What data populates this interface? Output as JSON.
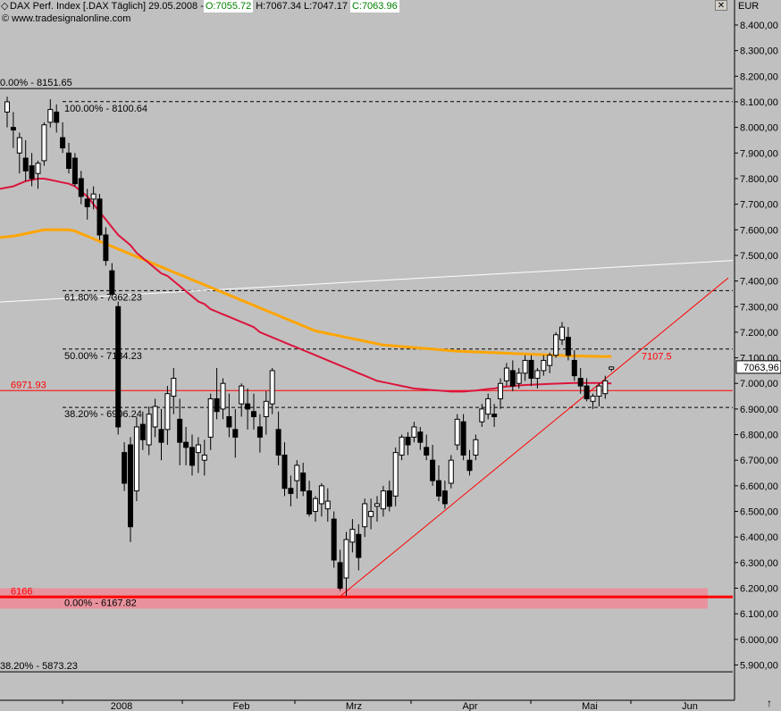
{
  "header": {
    "diamond_icon": "diamond-icon",
    "instrument": "DAX Perf. Index [.DAX  Täglich] 29.05.2008 - ",
    "open": "O:7055.72",
    "high": "H:7067.34",
    "low": "L:7047.17",
    "close": "C:7063.96",
    "source": "© www.tradesignalonline.com",
    "close_icon": "close-icon",
    "close_symbol": "✕"
  },
  "colors": {
    "background": "#c0c0c0",
    "candle_up": "#ffffff",
    "candle_down": "#000000",
    "ma_red": "#dc143c",
    "ma_orange": "#ffa500",
    "support_band": "#ee8a96",
    "annotation_red": "#ff0000",
    "trendline_white": "#ffffff"
  },
  "chart_data": {
    "type": "candlestick",
    "unit": "EUR",
    "ylim": [
      5800,
      8500
    ],
    "y_ticks": [
      "5.900,00",
      "6.000,00",
      "6.100,00",
      "6.200,00",
      "6.300,00",
      "6.400,00",
      "6.500,00",
      "6.600,00",
      "6.700,00",
      "6.800,00",
      "6.900,00",
      "7.000,00",
      "7.100,00",
      "7.200,00",
      "7.300,00",
      "7.400,00",
      "7.500,00",
      "7.600,00",
      "7.700,00",
      "7.800,00",
      "7.900,00",
      "8.000,00",
      "8.100,00",
      "8.200,00",
      "8.300,00",
      "8.400,00"
    ],
    "y_tick_values": [
      5900,
      6000,
      6100,
      6200,
      6300,
      6400,
      6500,
      6600,
      6700,
      6800,
      6900,
      7000,
      7100,
      7200,
      7300,
      7400,
      7500,
      7600,
      7700,
      7800,
      7900,
      8000,
      8100,
      8200,
      8300,
      8400
    ],
    "x_labels": [
      {
        "label": "2008",
        "date": "2008-01-02"
      },
      {
        "label": "Feb",
        "date": "2008-02-01"
      },
      {
        "label": "Mrz",
        "date": "2008-03-03"
      },
      {
        "label": "Apr",
        "date": "2008-04-01"
      },
      {
        "label": "Mai",
        "date": "2008-05-02"
      },
      {
        "label": "Jun",
        "date": "2008-06-02"
      }
    ],
    "last_price_label": "7063,96",
    "last_price": 7063.96,
    "fib_levels": [
      {
        "label": "0.00% - 8151.65",
        "value": 8151.65,
        "style": "solid"
      },
      {
        "label": "100.00% - 8100.64",
        "value": 8100.64,
        "style": "dashed"
      },
      {
        "label": "61.80% - 7362.23",
        "value": 7362.23,
        "style": "dashed"
      },
      {
        "label": "50.00% - 7134.23",
        "value": 7134.23,
        "style": "dashed"
      },
      {
        "label": "38.20% - 6906.24",
        "value": 6906.24,
        "style": "dashed"
      },
      {
        "label": "0.00% - 6167.82",
        "value": 6167.82,
        "style": "dashed"
      },
      {
        "label": "38.20% - 5873.23",
        "value": 5873.23,
        "style": "solid"
      }
    ],
    "horizontal_lines": [
      {
        "label": "6971.93",
        "value": 6971.93
      },
      {
        "label": "6166",
        "value": 6166
      }
    ],
    "annotation": {
      "label": "7107.5",
      "value": 7107.5
    },
    "support_band": [
      6120,
      6200
    ],
    "candles": [
      [
        8060,
        8120,
        8000,
        8100
      ],
      [
        8000,
        8060,
        7920,
        7990
      ],
      [
        7900,
        7980,
        7820,
        7960
      ],
      [
        7880,
        7950,
        7790,
        7830
      ],
      [
        7850,
        7900,
        7770,
        7800
      ],
      [
        7820,
        7870,
        7760,
        7860
      ],
      [
        7870,
        8020,
        7850,
        8010
      ],
      [
        8020,
        8110,
        8000,
        8070
      ],
      [
        8060,
        8090,
        7980,
        8020
      ],
      [
        7960,
        8020,
        7900,
        7920
      ],
      [
        7900,
        7940,
        7820,
        7840
      ],
      [
        7880,
        7900,
        7770,
        7780
      ],
      [
        7800,
        7830,
        7700,
        7730
      ],
      [
        7720,
        7760,
        7640,
        7690
      ],
      [
        7720,
        7770,
        7680,
        7740
      ],
      [
        7720,
        7740,
        7560,
        7580
      ],
      [
        7580,
        7610,
        7460,
        7480
      ],
      [
        7440,
        7470,
        7330,
        7350
      ],
      [
        7300,
        7320,
        6800,
        6830
      ],
      [
        6730,
        6770,
        6580,
        6610
      ],
      [
        6760,
        6790,
        6380,
        6440
      ],
      [
        6580,
        6870,
        6540,
        6830
      ],
      [
        6840,
        6890,
        6740,
        6780
      ],
      [
        6760,
        6910,
        6720,
        6880
      ],
      [
        6830,
        6940,
        6790,
        6910
      ],
      [
        6820,
        6900,
        6700,
        6770
      ],
      [
        6820,
        6990,
        6760,
        6960
      ],
      [
        6950,
        7060,
        6880,
        7020
      ],
      [
        6860,
        6940,
        6680,
        6770
      ],
      [
        6770,
        6830,
        6680,
        6750
      ],
      [
        6750,
        6800,
        6640,
        6680
      ],
      [
        6730,
        6790,
        6650,
        6760
      ],
      [
        6700,
        6780,
        6640,
        6720
      ],
      [
        6790,
        6960,
        6740,
        6940
      ],
      [
        6940,
        7060,
        6860,
        6890
      ],
      [
        6900,
        7020,
        6860,
        7000
      ],
      [
        6870,
        6960,
        6790,
        6830
      ],
      [
        6820,
        6900,
        6710,
        6790
      ],
      [
        6920,
        7000,
        6870,
        6990
      ],
      [
        6920,
        6980,
        6820,
        6900
      ],
      [
        6890,
        6960,
        6820,
        6870
      ],
      [
        6830,
        6880,
        6730,
        6790
      ],
      [
        6870,
        6970,
        6800,
        6930
      ],
      [
        6920,
        7060,
        6880,
        7050
      ],
      [
        6820,
        6890,
        6680,
        6720
      ],
      [
        6720,
        6770,
        6560,
        6590
      ],
      [
        6590,
        6640,
        6520,
        6570
      ],
      [
        6620,
        6700,
        6550,
        6680
      ],
      [
        6650,
        6690,
        6560,
        6580
      ],
      [
        6580,
        6620,
        6480,
        6490
      ],
      [
        6500,
        6560,
        6460,
        6550
      ],
      [
        6530,
        6610,
        6480,
        6600
      ],
      [
        6510,
        6590,
        6460,
        6540
      ],
      [
        6470,
        6500,
        6280,
        6310
      ],
      [
        6300,
        6350,
        6190,
        6200
      ],
      [
        6240,
        6420,
        6170,
        6390
      ],
      [
        6380,
        6470,
        6340,
        6430
      ],
      [
        6410,
        6450,
        6270,
        6320
      ],
      [
        6440,
        6550,
        6400,
        6530
      ],
      [
        6480,
        6550,
        6430,
        6500
      ],
      [
        6520,
        6560,
        6460,
        6530
      ],
      [
        6510,
        6600,
        6480,
        6580
      ],
      [
        6580,
        6620,
        6500,
        6520
      ],
      [
        6560,
        6750,
        6520,
        6730
      ],
      [
        6720,
        6800,
        6700,
        6790
      ],
      [
        6790,
        6810,
        6720,
        6760
      ],
      [
        6790,
        6850,
        6770,
        6830
      ],
      [
        6810,
        6830,
        6740,
        6770
      ],
      [
        6750,
        6800,
        6700,
        6720
      ],
      [
        6700,
        6760,
        6600,
        6620
      ],
      [
        6620,
        6680,
        6540,
        6560
      ],
      [
        6580,
        6620,
        6510,
        6530
      ],
      [
        6610,
        6720,
        6590,
        6700
      ],
      [
        6760,
        6880,
        6740,
        6860
      ],
      [
        6850,
        6880,
        6700,
        6720
      ],
      [
        6700,
        6740,
        6640,
        6660
      ],
      [
        6720,
        6800,
        6700,
        6780
      ],
      [
        6850,
        6920,
        6830,
        6900
      ],
      [
        6880,
        6960,
        6860,
        6940
      ],
      [
        6880,
        6920,
        6830,
        6870
      ],
      [
        6940,
        7020,
        6900,
        7000
      ],
      [
        7010,
        7080,
        6990,
        7060
      ],
      [
        7050,
        7090,
        6970,
        6990
      ],
      [
        7000,
        7060,
        6980,
        7040
      ],
      [
        7040,
        7110,
        7010,
        7090
      ],
      [
        7090,
        7110,
        6990,
        7020
      ],
      [
        7020,
        7060,
        6980,
        7050
      ],
      [
        7050,
        7110,
        7030,
        7090
      ],
      [
        7070,
        7120,
        7040,
        7110
      ],
      [
        7110,
        7200,
        7100,
        7190
      ],
      [
        7170,
        7240,
        7150,
        7220
      ],
      [
        7180,
        7220,
        7090,
        7110
      ],
      [
        7090,
        7130,
        7010,
        7030
      ],
      [
        7020,
        7060,
        6960,
        6990
      ],
      [
        6990,
        7020,
        6930,
        6940
      ],
      [
        6930,
        6960,
        6900,
        6950
      ],
      [
        6950,
        7000,
        6910,
        6990
      ],
      [
        6960,
        7030,
        6940,
        7010
      ],
      [
        7055.72,
        7067.34,
        7047.17,
        7063.96
      ]
    ],
    "ma_red": [
      7760,
      7770,
      7780,
      7790,
      7795,
      7800,
      7800,
      7795,
      7790,
      7785,
      7780,
      7770,
      7750,
      7730,
      7700,
      7670,
      7640,
      7610,
      7580,
      7560,
      7540,
      7510,
      7490,
      7470,
      7450,
      7430,
      7420,
      7400,
      7380,
      7360,
      7340,
      7320,
      7310,
      7290,
      7280,
      7270,
      7260,
      7250,
      7240,
      7230,
      7220,
      7200,
      7190,
      7180,
      7170,
      7160,
      7150,
      7140,
      7130,
      7120,
      7110,
      7100,
      7090,
      7080,
      7070,
      7060,
      7050,
      7040,
      7030,
      7020,
      7010,
      7005,
      7000,
      6995,
      6990,
      6985,
      6980,
      6978,
      6976,
      6974,
      6972,
      6970,
      6968,
      6968,
      6968,
      6970,
      6972,
      6975,
      6978,
      6980,
      6985,
      6988,
      6990,
      6992,
      6994,
      6995,
      6996,
      6997,
      6998,
      6999,
      7000,
      7001,
      7002,
      7002,
      7002,
      7002,
      7002,
      7001,
      7000
    ],
    "ma_orange": [
      7570,
      7575,
      7580,
      7585,
      7590,
      7595,
      7600,
      7600,
      7600,
      7600,
      7600,
      7595,
      7585,
      7575,
      7565,
      7555,
      7545,
      7535,
      7525,
      7515,
      7505,
      7495,
      7485,
      7475,
      7465,
      7455,
      7445,
      7435,
      7425,
      7415,
      7405,
      7395,
      7385,
      7375,
      7365,
      7355,
      7345,
      7335,
      7325,
      7315,
      7305,
      7295,
      7285,
      7275,
      7265,
      7255,
      7245,
      7235,
      7225,
      7215,
      7205,
      7200,
      7195,
      7190,
      7185,
      7180,
      7175,
      7170,
      7165,
      7160,
      7155,
      7150,
      7148,
      7146,
      7144,
      7142,
      7140,
      7138,
      7136,
      7134,
      7132,
      7130,
      7128,
      7126,
      7125,
      7124,
      7123,
      7122,
      7121,
      7120,
      7119,
      7118,
      7117,
      7116,
      7115,
      7114,
      7113,
      7112,
      7111,
      7110,
      7109,
      7108,
      7107,
      7107,
      7106,
      7106,
      7105,
      7105,
      7105
    ],
    "red_trendline": {
      "from": [
        54,
        6167.82
      ],
      "to": [
        113,
        7412
      ]
    },
    "white_trendline": {
      "from": [
        0,
        7318
      ],
      "to": [
        113,
        7480
      ]
    }
  }
}
